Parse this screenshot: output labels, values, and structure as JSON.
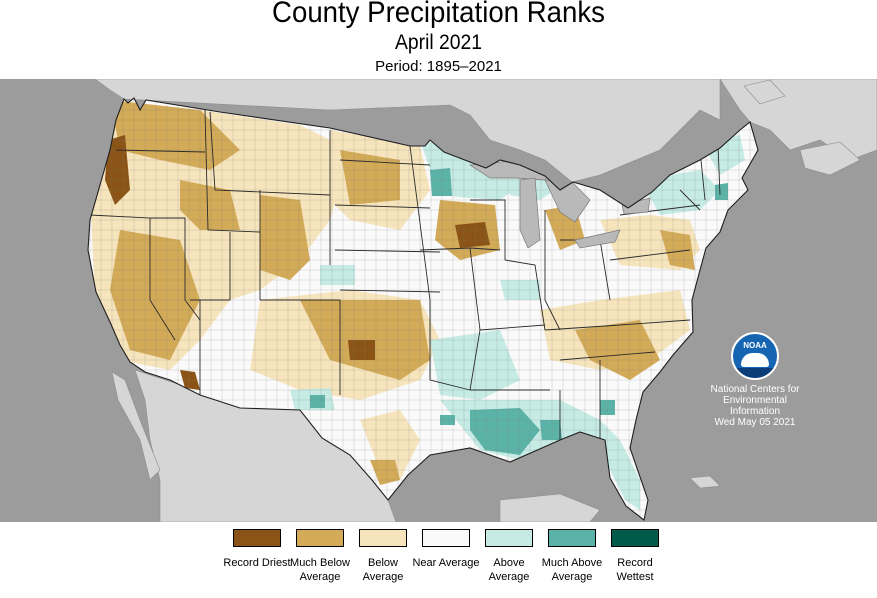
{
  "header": {
    "title": "County Precipitation Ranks",
    "subtitle": "April 2021",
    "period": "Period: 1895–2021"
  },
  "colors": {
    "ocean": "#9c9c9c",
    "land_outside_us": "#d6d6d6",
    "record_driest": "#8b5416",
    "much_below": "#d3aa58",
    "below": "#f6e4bc",
    "near": "#fafafa",
    "above": "#c6ebe4",
    "much_above": "#5bb3a8",
    "record_wettest": "#005b4b"
  },
  "legend": {
    "items": [
      {
        "label": "Record Driest",
        "color": "#8b5416"
      },
      {
        "label": "Much Below Average",
        "color": "#d3aa58"
      },
      {
        "label": "Below Average",
        "color": "#f6e4bc"
      },
      {
        "label": "Near Average",
        "color": "#fafafa"
      },
      {
        "label": "Above Average",
        "color": "#c6ebe4"
      },
      {
        "label": "Much Above Average",
        "color": "#5bb3a8"
      },
      {
        "label": "Record Wettest",
        "color": "#005b4b"
      }
    ]
  },
  "credit": {
    "logo_text": "NOAA",
    "org_line1": "National Centers for",
    "org_line2": "Environmental",
    "org_line3": "Information",
    "date": "Wed May 05 2021"
  }
}
